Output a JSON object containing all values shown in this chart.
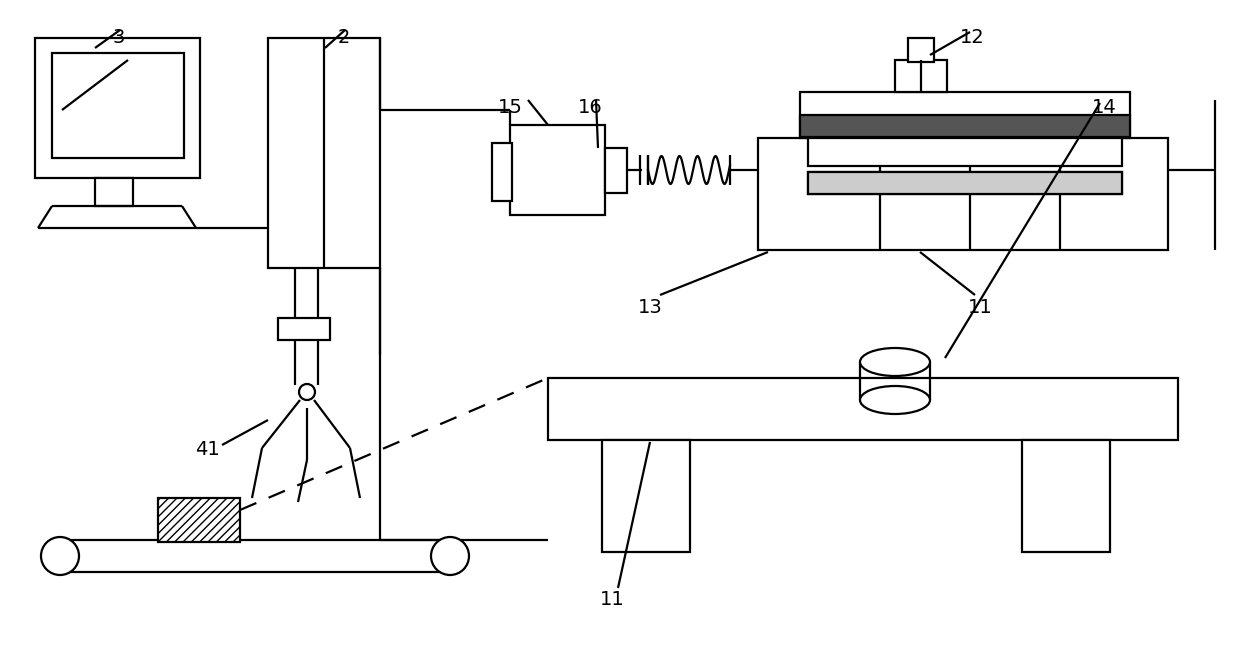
{
  "bg_color": "#ffffff",
  "lc": "#000000",
  "lw": 1.6,
  "fig_w": 12.4,
  "fig_h": 6.47,
  "dpi": 100
}
